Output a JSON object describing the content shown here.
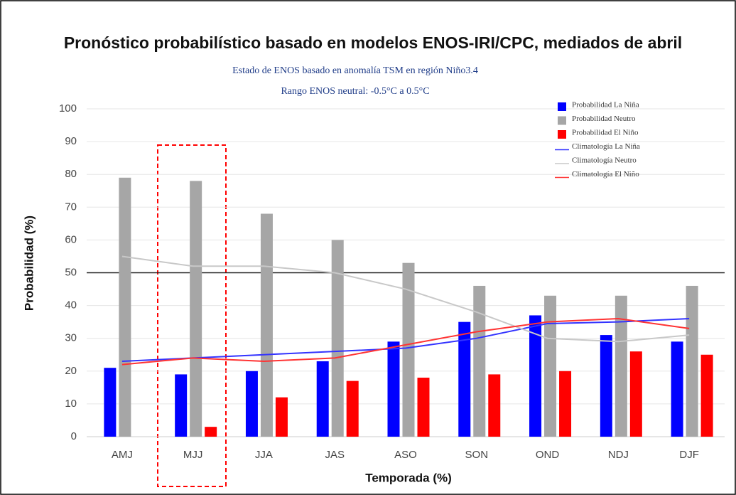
{
  "chart_data": {
    "type": "bar",
    "title": "Pronóstico probabilístico basado en modelos ENOS-IRI/CPC, mediados de abril",
    "subtitle": [
      "Estado de ENOS basado en anomalía TSM en región Niño3.4",
      "Rango ENOS neutral: -0.5°C a 0.5°C"
    ],
    "x_label": "Temporada (%)",
    "y_label": "Probabilidad (%)",
    "categories": [
      "AMJ",
      "MJJ",
      "JJA",
      "JAS",
      "ASO",
      "SON",
      "OND",
      "NDJ",
      "DJF"
    ],
    "series": [
      {
        "name": "Probabilidad La Niña",
        "type": "bar",
        "color": "#0000ff",
        "values": [
          21,
          19,
          20,
          23,
          29,
          35,
          37,
          31,
          29
        ]
      },
      {
        "name": "Probabilidad Neutro",
        "type": "bar",
        "color": "#a6a6a6",
        "values": [
          79,
          78,
          68,
          60,
          53,
          46,
          43,
          43,
          46
        ]
      },
      {
        "name": "Probabilidad El Niño",
        "type": "bar",
        "color": "#ff0000",
        "values": [
          0,
          3,
          12,
          17,
          18,
          19,
          20,
          26,
          25
        ]
      },
      {
        "name": "Climatología La Niña",
        "type": "line",
        "color": "#3333ff",
        "values": [
          23,
          24,
          25,
          26,
          27,
          30,
          34.5,
          35,
          36
        ]
      },
      {
        "name": "Climatología Neutro",
        "type": "line",
        "color": "#c8c8c8",
        "values": [
          55,
          52,
          52,
          50,
          45,
          38,
          30,
          29,
          31
        ]
      },
      {
        "name": "Climatología El Niño",
        "type": "line",
        "color": "#ff3333",
        "values": [
          22,
          24,
          23,
          24,
          28,
          32,
          35,
          36,
          33
        ]
      }
    ],
    "reference_line": 50,
    "ylim": [
      0,
      100
    ],
    "yticks": [
      0,
      10,
      20,
      30,
      40,
      50,
      60,
      70,
      80,
      90,
      100
    ],
    "grid": true,
    "legend": "top-right"
  }
}
